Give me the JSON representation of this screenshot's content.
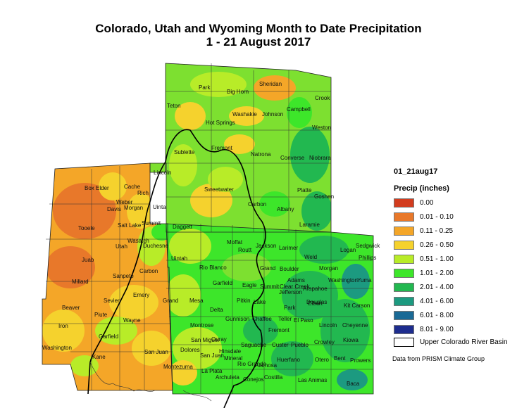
{
  "title": {
    "line1": "Colorado, Utah and Wyoming Month to Date Precipitation",
    "line2": "1 - 21 August 2017"
  },
  "legend": {
    "layer_name": "01_21aug17",
    "field_name": "Precip (inches)",
    "classes": [
      {
        "label": "0.00",
        "color": "#d23c1e"
      },
      {
        "label": "0.01 - 0.10",
        "color": "#e8782a"
      },
      {
        "label": "0.11 - 0.25",
        "color": "#f4a628"
      },
      {
        "label": "0.26 - 0.50",
        "color": "#f5d22d"
      },
      {
        "label": "0.51 - 1.00",
        "color": "#b8ec28"
      },
      {
        "label": "1.01 - 2.00",
        "color": "#3de62a"
      },
      {
        "label": "2.01 - 4.00",
        "color": "#22b850"
      },
      {
        "label": "4.01 - 6.00",
        "color": "#1c9a80"
      },
      {
        "label": "6.01 - 8.00",
        "color": "#1a6a96"
      },
      {
        "label": "8.01 - 9.00",
        "color": "#1d2c8e"
      }
    ],
    "basin_label": "Upper Colorado River Basin"
  },
  "credit": "Data from PRISM Climate Group",
  "counties": {
    "wyoming": [
      "Park",
      "Big Horn",
      "Sheridan",
      "Crook",
      "Teton",
      "Washakie",
      "Johnson",
      "Campbell",
      "Hot Springs",
      "Weston",
      "Fremont",
      "Sublette",
      "Natrona",
      "Converse",
      "Niobrara",
      "Lincoln",
      "Sweetwater",
      "Carbon",
      "Albany",
      "Platte",
      "Goshen",
      "Uinta",
      "Laramie"
    ],
    "utah": [
      "Box Elder",
      "Cache",
      "Rich",
      "Weber",
      "Davis",
      "Morgan",
      "Salt Lake",
      "Summit",
      "Daggett",
      "Tooele",
      "Wasatch",
      "Utah",
      "Duchesne",
      "Uintah",
      "Juab",
      "Carbon",
      "Sanpete",
      "Millard",
      "Emery",
      "Sevier",
      "Grand",
      "Beaver",
      "Piute",
      "Wayne",
      "Iron",
      "Garfield",
      "Washington",
      "Kane",
      "San Juan"
    ],
    "colorado": [
      "Moffat",
      "Routt",
      "Jackson",
      "Larimer",
      "Weld",
      "Logan",
      "Sedgwick",
      "Phillips",
      "Morgan",
      "Rio Blanco",
      "Grand",
      "Boulder",
      "Adams",
      "Washington",
      "Yuma",
      "Garfield",
      "Eagle",
      "Summit",
      "Clear Creek",
      "Jefferson",
      "Arapahoe",
      "Mesa",
      "Pitkin",
      "Lake",
      "Park",
      "Douglas",
      "Elbert",
      "Kit Carson",
      "Delta",
      "Gunnison",
      "Chaffee",
      "Teller",
      "El Paso",
      "Lincoln",
      "Cheyenne",
      "Montrose",
      "Fremont",
      "San Miguel",
      "Ouray",
      "Saguache",
      "Custer",
      "Pueblo",
      "Crowley",
      "Kiowa",
      "Dolores",
      "San Juan",
      "Hinsdale",
      "Mineral",
      "Rio Grande",
      "Alamosa",
      "Huerfano",
      "Otero",
      "Bent",
      "Prowers",
      "Montezuma",
      "La Plata",
      "Archuleta",
      "Conejos",
      "Costilla",
      "Las Animas",
      "Baca"
    ]
  }
}
